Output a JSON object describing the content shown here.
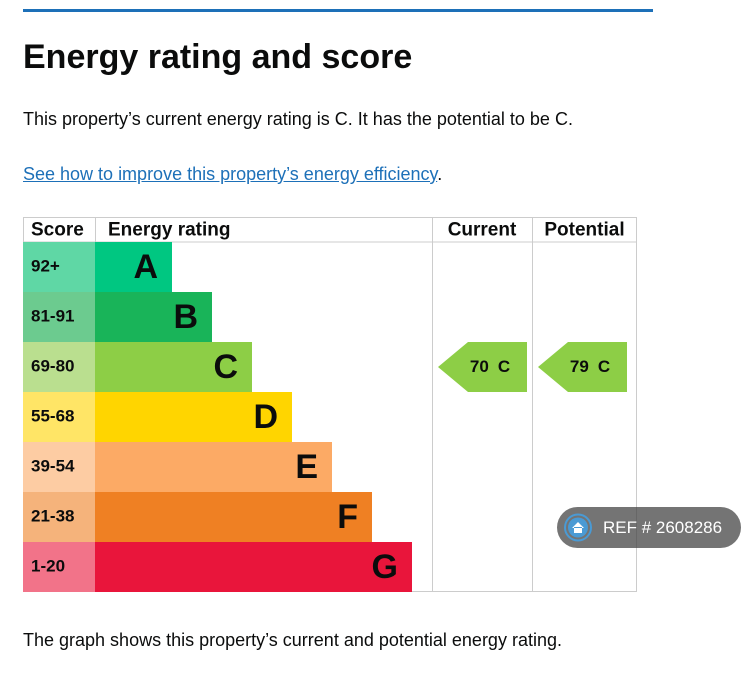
{
  "header": {
    "title": "Energy rating and score"
  },
  "summary": "This property’s current energy rating is C. It has the potential to be C.",
  "link": {
    "text": "See how to improve this property’s energy efficiency",
    "suffix": "."
  },
  "table": {
    "headers": [
      "Score",
      "Energy rating",
      "Current",
      "Potential"
    ],
    "bands": [
      {
        "score": "92+",
        "letter": "A",
        "color": "#00c781",
        "score_color": "#5fd7a5"
      },
      {
        "score": "81-91",
        "letter": "B",
        "color": "#19b459",
        "score_color": "#6ccb8f"
      },
      {
        "score": "69-80",
        "letter": "C",
        "color": "#8dce46",
        "score_color": "#badf8f"
      },
      {
        "score": "55-68",
        "letter": "D",
        "color": "#ffd500",
        "score_color": "#ffe566"
      },
      {
        "score": "39-54",
        "letter": "E",
        "color": "#fcaa65",
        "score_color": "#fdcca3"
      },
      {
        "score": "21-38",
        "letter": "F",
        "color": "#ef8023",
        "score_color": "#f5b37b"
      },
      {
        "score": "1-20",
        "letter": "G",
        "color": "#e9153b",
        "score_color": "#f27389"
      }
    ],
    "current": {
      "value": 70,
      "letter": "C"
    },
    "potential": {
      "value": 79,
      "letter": "C"
    }
  },
  "footer": "The graph shows this property’s current and potential energy rating.",
  "badge": "REF # 2608286"
}
